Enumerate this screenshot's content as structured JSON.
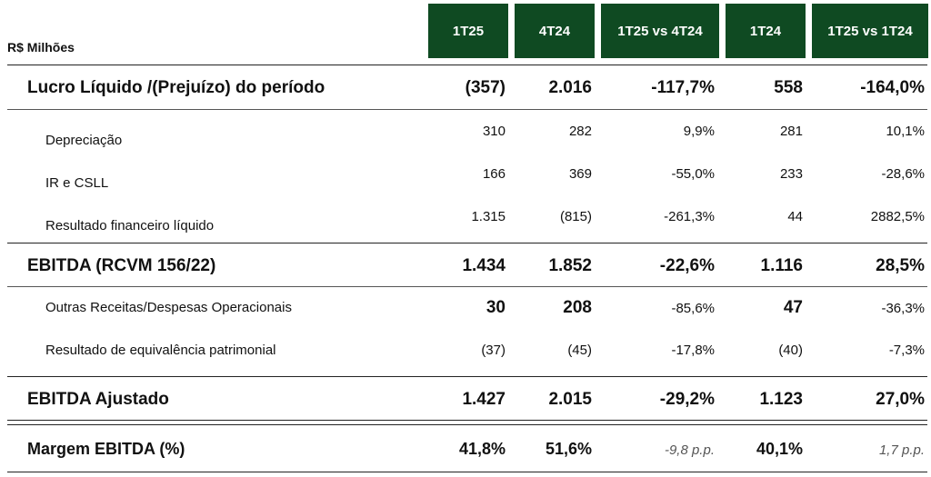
{
  "unit_label": "R$ Milhões",
  "columns": [
    "1T25",
    "4T24",
    "1T25 vs 4T24",
    "1T24",
    "1T25 vs 1T24"
  ],
  "rows": [
    {
      "label": "Lucro Líquido /(Prejuízo) do período",
      "values": [
        "(357)",
        "2.016",
        "-117,7%",
        "558",
        "-164,0%"
      ]
    },
    {
      "label": "Depreciação",
      "values": [
        "310",
        "282",
        "9,9%",
        "281",
        "10,1%"
      ]
    },
    {
      "label": "IR e CSLL",
      "values": [
        "166",
        "369",
        "-55,0%",
        "233",
        "-28,6%"
      ]
    },
    {
      "label": "Resultado financeiro líquido",
      "values": [
        "1.315",
        "(815)",
        "-261,3%",
        "44",
        "2882,5%"
      ]
    },
    {
      "label": "EBITDA (RCVM 156/22)",
      "values": [
        "1.434",
        "1.852",
        "-22,6%",
        "1.116",
        "28,5%"
      ]
    },
    {
      "label": "Outras Receitas/Despesas Operacionais",
      "values": [
        "30",
        "208",
        "-85,6%",
        "47",
        "-36,3%"
      ]
    },
    {
      "label": "Resultado de equivalência patrimonial",
      "values": [
        "(37)",
        "(45)",
        "-17,8%",
        "(40)",
        "-7,3%"
      ]
    },
    {
      "label": "EBITDA Ajustado",
      "values": [
        "1.427",
        "2.015",
        "-29,2%",
        "1.123",
        "27,0%"
      ]
    },
    {
      "label": "Margem EBITDA (%)",
      "values": [
        "41,8%",
        "51,6%",
        "-9,8 p.p.",
        "40,1%",
        "1,7 p.p."
      ]
    }
  ]
}
